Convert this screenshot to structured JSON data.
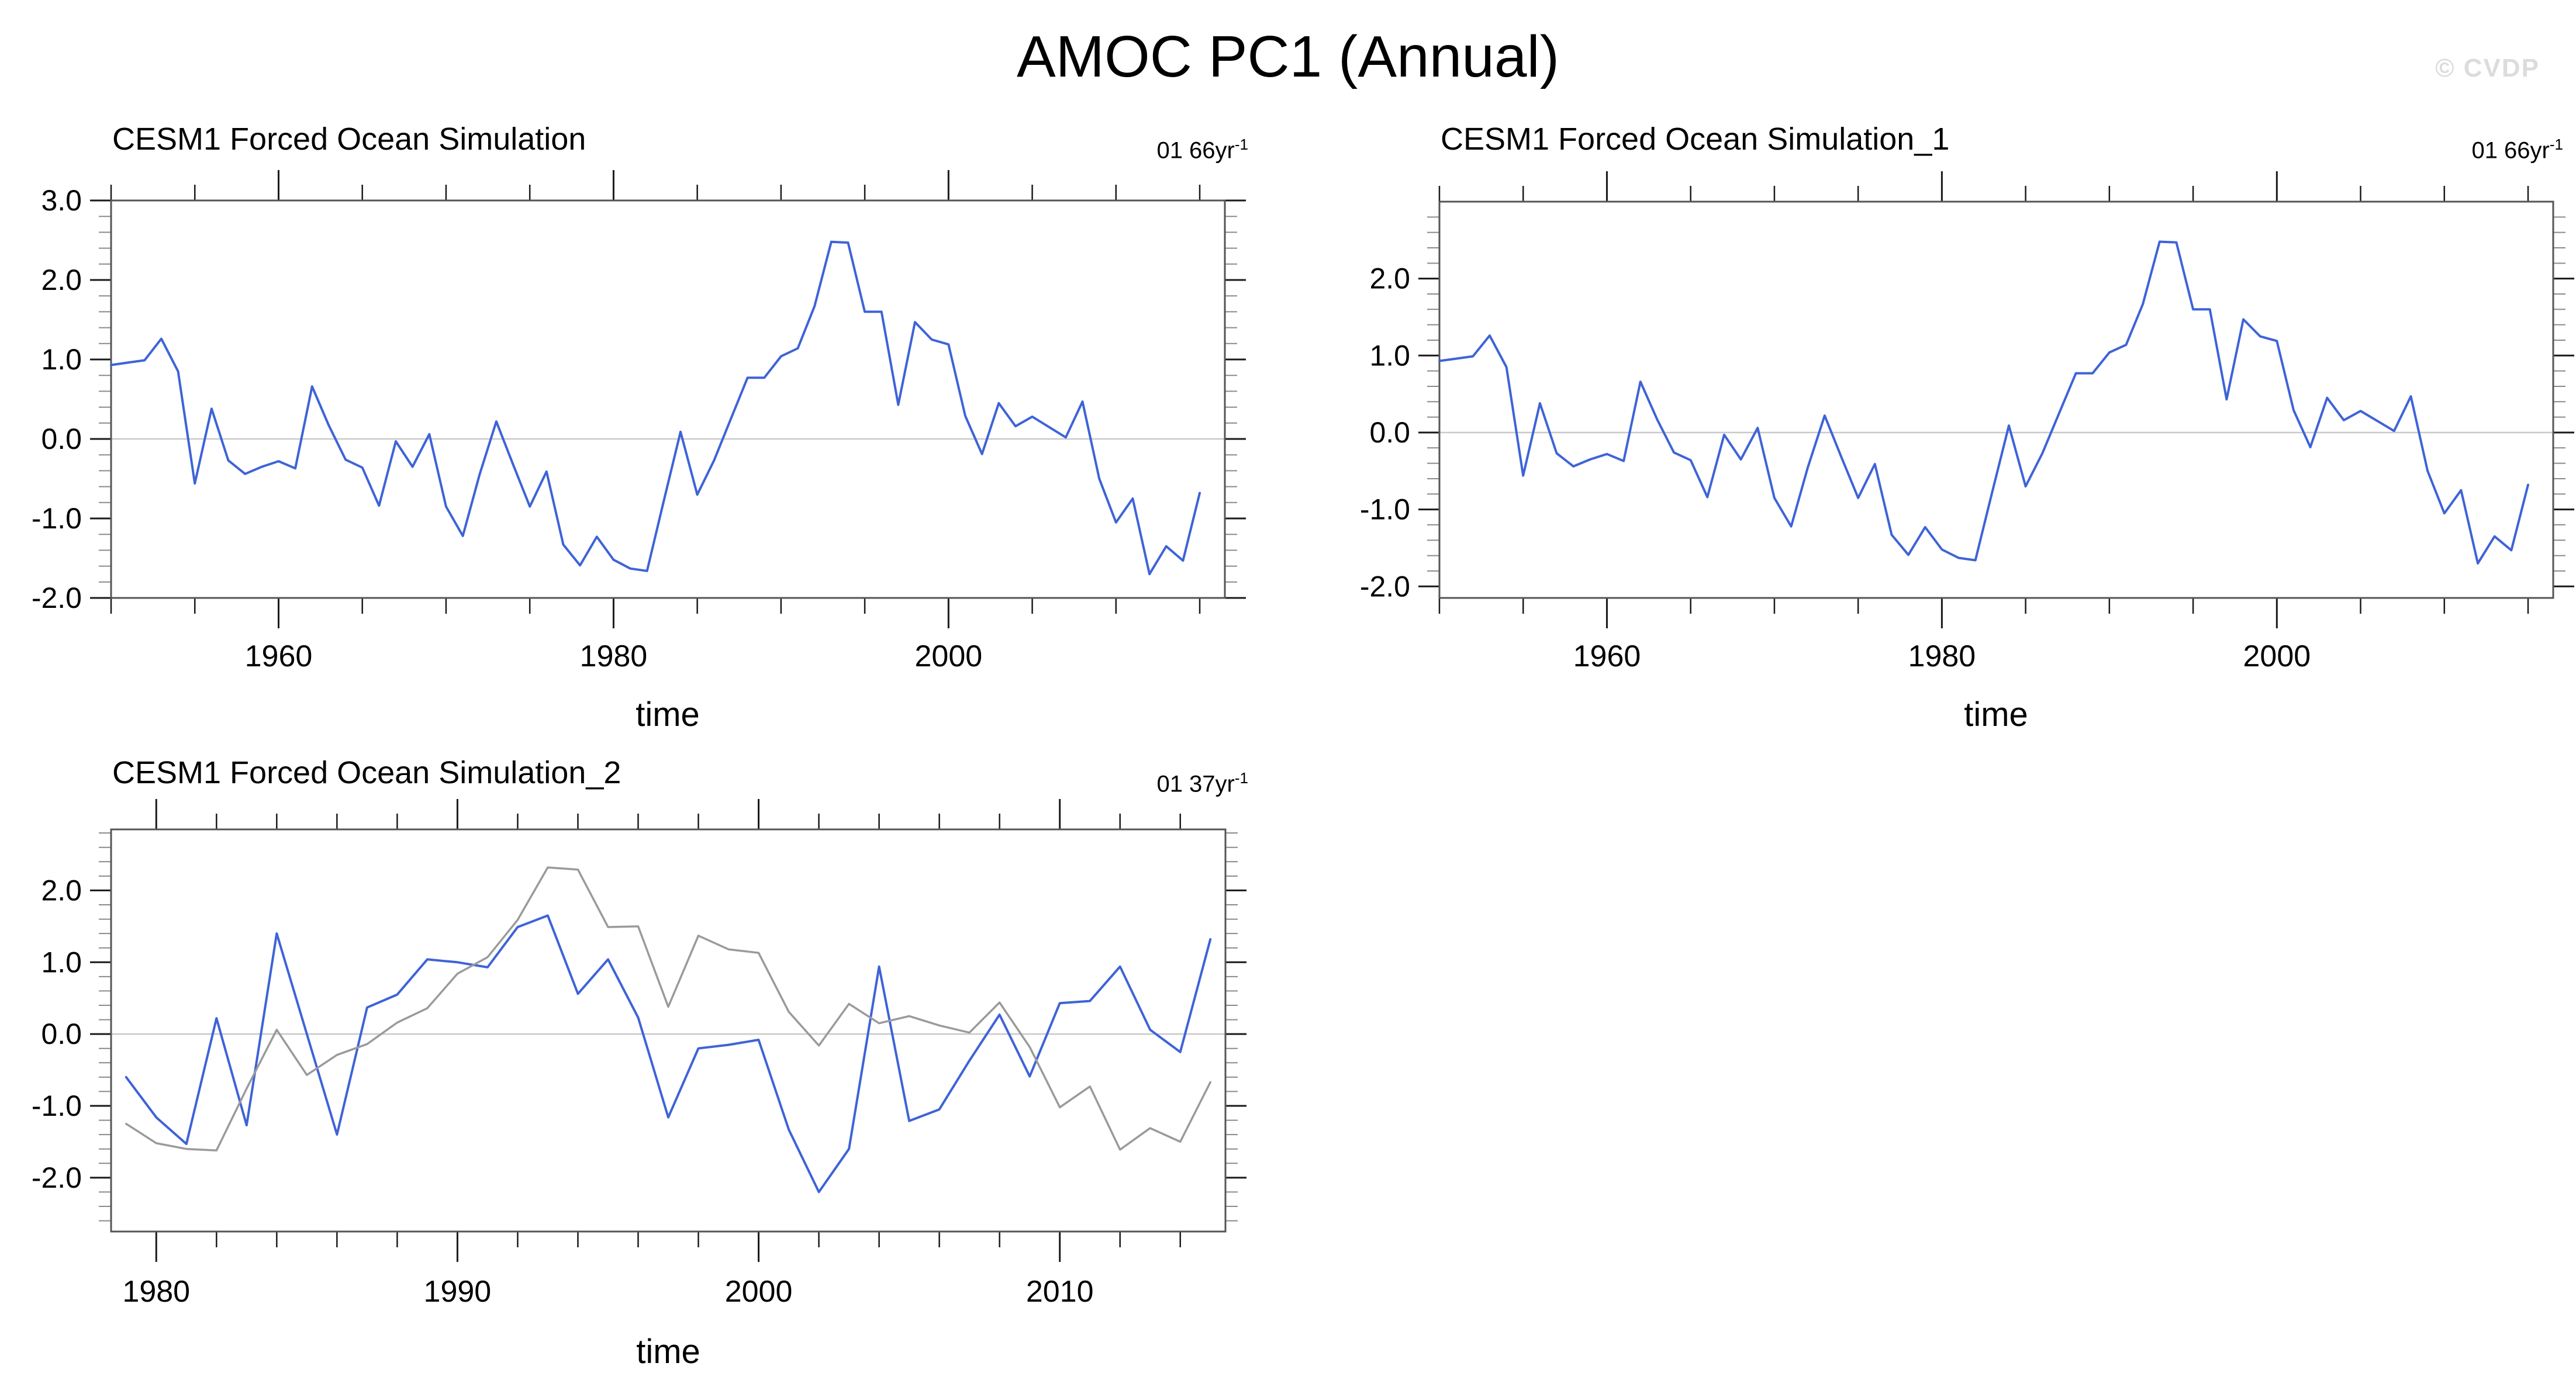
{
  "page": {
    "title": "AMOC PC1 (Annual)",
    "watermark": "© CVDP"
  },
  "chart_data": [
    {
      "type": "line",
      "title": "CESM1 Forced Ocean Simulation",
      "period_label": "01 66yr",
      "period_exponent": "-1",
      "xlabel": "time",
      "xlim": [
        1950,
        2016.5
      ],
      "ylim": [
        -2.0,
        3.0
      ],
      "yticks": [
        3,
        2,
        1,
        0,
        -1,
        -2
      ],
      "ytick_labels": [
        "3.0",
        "2.0",
        "1.0",
        "0.0",
        "-1.0",
        "-2.0"
      ],
      "xticks": [
        1960,
        1980,
        2000
      ],
      "xtick_labels": [
        "1960",
        "1980",
        "2000"
      ],
      "minor_x": {
        "start": 1950,
        "end": 2015,
        "step": 5
      },
      "minor_y_step": 0.2,
      "zero_line": true,
      "grid": false,
      "legend": "none",
      "series": [
        {
          "name": "series-1",
          "color": "#3E63D8",
          "x_start": 1950,
          "x_step": 1,
          "values": [
            0.93,
            0.96,
            0.99,
            1.26,
            0.85,
            -0.56,
            0.38,
            -0.27,
            -0.44,
            -0.35,
            -0.28,
            -0.37,
            0.66,
            0.17,
            -0.26,
            -0.36,
            -0.84,
            -0.03,
            -0.35,
            0.06,
            -0.85,
            -1.22,
            -0.45,
            0.22,
            -0.32,
            -0.85,
            -0.41,
            -1.33,
            -1.59,
            -1.23,
            -1.52,
            -1.63,
            -1.66,
            -0.78,
            0.09,
            -0.7,
            -0.27,
            0.25,
            0.77,
            0.77,
            1.04,
            1.14,
            1.67,
            2.48,
            2.47,
            1.6,
            1.6,
            0.43,
            1.47,
            1.25,
            1.19,
            0.29,
            -0.19,
            0.45,
            0.16,
            0.28,
            0.15,
            0.02,
            0.47,
            -0.5,
            -1.05,
            -0.75,
            -1.7,
            -1.35,
            -1.53,
            -0.68
          ]
        }
      ]
    },
    {
      "type": "line",
      "title": "CESM1 Forced Ocean Simulation_1",
      "period_label": "01 66yr",
      "period_exponent": "-1",
      "xlabel": "time",
      "xlim": [
        1950,
        2016.5
      ],
      "ylim": [
        -2.15,
        3.0
      ],
      "yticks": [
        2,
        1,
        0,
        -1,
        -2
      ],
      "ytick_labels": [
        "2.0",
        "1.0",
        "0.0",
        "-1.0",
        "-2.0"
      ],
      "xticks": [
        1960,
        1980,
        2000
      ],
      "xtick_labels": [
        "1960",
        "1980",
        "2000"
      ],
      "minor_x": {
        "start": 1950,
        "end": 2015,
        "step": 5
      },
      "minor_y_step": 0.2,
      "zero_line": true,
      "grid": false,
      "legend": "none",
      "series": [
        {
          "name": "series-1",
          "color": "#3E63D8",
          "x_start": 1950,
          "x_step": 1,
          "values": [
            0.93,
            0.96,
            0.99,
            1.26,
            0.85,
            -0.56,
            0.38,
            -0.27,
            -0.44,
            -0.35,
            -0.28,
            -0.37,
            0.66,
            0.17,
            -0.26,
            -0.36,
            -0.84,
            -0.03,
            -0.35,
            0.06,
            -0.85,
            -1.22,
            -0.45,
            0.22,
            -0.32,
            -0.85,
            -0.41,
            -1.33,
            -1.59,
            -1.23,
            -1.52,
            -1.63,
            -1.66,
            -0.78,
            0.09,
            -0.7,
            -0.27,
            0.25,
            0.77,
            0.77,
            1.04,
            1.14,
            1.67,
            2.48,
            2.47,
            1.6,
            1.6,
            0.43,
            1.47,
            1.25,
            1.19,
            0.29,
            -0.19,
            0.45,
            0.16,
            0.28,
            0.15,
            0.02,
            0.47,
            -0.5,
            -1.05,
            -0.75,
            -1.7,
            -1.35,
            -1.53,
            -0.68
          ]
        }
      ]
    },
    {
      "type": "line",
      "title": "CESM1 Forced Ocean Simulation_2",
      "period_label": "01 37yr",
      "period_exponent": "-1",
      "xlabel": "time",
      "xlim": [
        1978.5,
        2015.5
      ],
      "ylim": [
        -2.75,
        2.85
      ],
      "yticks": [
        2,
        1,
        0,
        -1,
        -2
      ],
      "ytick_labels": [
        "2.0",
        "1.0",
        "0.0",
        "-1.0",
        "-2.0"
      ],
      "xticks": [
        1980,
        1990,
        2000,
        2010
      ],
      "xtick_labels": [
        "1980",
        "1990",
        "2000",
        "2010"
      ],
      "minor_x": {
        "start": 1980,
        "end": 2014,
        "step": 2
      },
      "minor_y_step": 0.2,
      "zero_line": true,
      "grid": false,
      "legend": "none",
      "series": [
        {
          "name": "series-1",
          "color": "#3E63D8",
          "x_start": 1979,
          "x_step": 1,
          "values": [
            -0.6,
            -1.16,
            -1.53,
            0.22,
            -1.27,
            1.4,
            0.0,
            -1.4,
            0.37,
            0.55,
            1.04,
            1.0,
            0.93,
            1.49,
            1.65,
            0.56,
            1.04,
            0.23,
            -1.16,
            -0.2,
            -0.15,
            -0.08,
            -1.33,
            -2.2,
            -1.6,
            0.94,
            -1.21,
            -1.05,
            -0.37,
            0.27,
            -0.59,
            0.43,
            0.46,
            0.94,
            0.06,
            -0.25,
            1.32
          ]
        },
        {
          "name": "series-2",
          "color": "#9A9A9A",
          "x_start": 1979,
          "x_step": 1,
          "values": [
            -1.25,
            -1.52,
            -1.6,
            -1.62,
            -0.76,
            0.06,
            -0.57,
            -0.29,
            -0.14,
            0.16,
            0.36,
            0.84,
            1.07,
            1.59,
            2.32,
            2.29,
            1.49,
            1.5,
            0.38,
            1.37,
            1.18,
            1.13,
            0.31,
            -0.16,
            0.42,
            0.15,
            0.25,
            0.12,
            0.02,
            0.44,
            -0.18,
            -1.02,
            -0.73,
            -1.61,
            -1.31,
            -1.5,
            -0.67
          ]
        }
      ]
    }
  ],
  "style": {
    "frame_color": "#555555",
    "tick_color": "#1a1a1a",
    "zero_line_color": "#c9c9c9",
    "label_color": "#000000"
  }
}
